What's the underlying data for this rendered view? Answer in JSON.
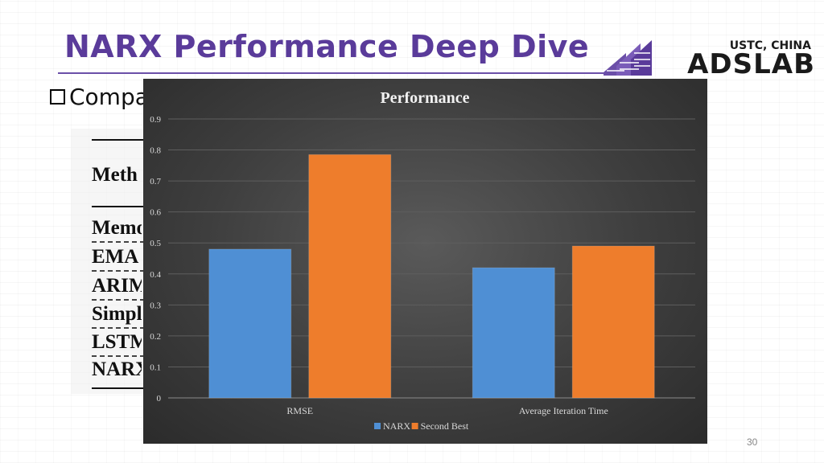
{
  "slide": {
    "title": "NARX Performance Deep Dive",
    "bullet_text": "Compa",
    "page_number": "30"
  },
  "logo": {
    "subtitle": "USTC, CHINA",
    "name": "ADSLAB"
  },
  "table_rows": [
    {
      "text": "Meth"
    },
    {
      "text": "Memo"
    },
    {
      "text": "EMA"
    },
    {
      "text": "ARIM"
    },
    {
      "text": "Simpl"
    },
    {
      "text": "LSTM"
    },
    {
      "text": "NARX"
    }
  ],
  "chart_data": {
    "type": "bar",
    "title": "Performance",
    "categories": [
      "RMSE",
      "Average Iteration Time"
    ],
    "series": [
      {
        "name": "NARX",
        "values": [
          0.48,
          0.42
        ],
        "color": "#4f8fd4"
      },
      {
        "name": "Second Best",
        "values": [
          0.785,
          0.49
        ],
        "color": "#ee7d2c"
      }
    ],
    "ylim": [
      0,
      0.9
    ],
    "yticks": [
      "0",
      "0.1",
      "0.2",
      "0.3",
      "0.4",
      "0.5",
      "0.6",
      "0.7",
      "0.8",
      "0.9"
    ],
    "grid": true,
    "legend": "bottom"
  }
}
